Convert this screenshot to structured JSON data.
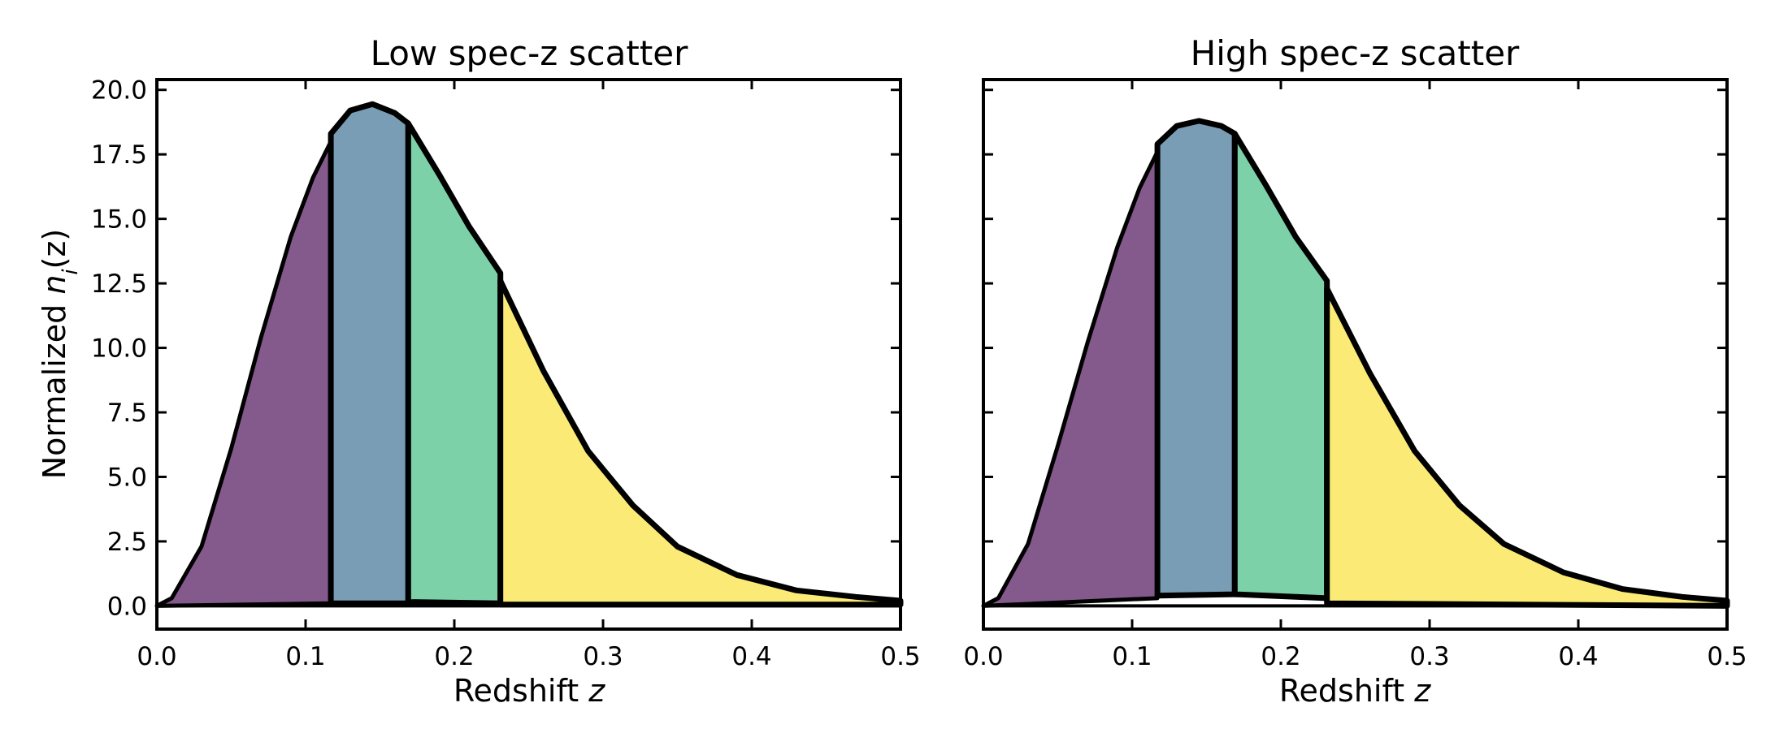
{
  "chart_data": [
    {
      "type": "area",
      "title": "Low spec-z scatter",
      "xlabel": "Redshift",
      "xlabel_var": "z",
      "ylabel": "Normalized",
      "ylabel_var": "n",
      "ylabel_sub": "i",
      "ylabel_arg": "(z)",
      "xlim": [
        0,
        0.5
      ],
      "ylim": [
        -0.9,
        20.4
      ],
      "xticks": [
        "0.0",
        "0.1",
        "0.2",
        "0.3",
        "0.4",
        "0.5"
      ],
      "yticks": [
        "0.0",
        "2.5",
        "5.0",
        "7.5",
        "10.0",
        "12.5",
        "15.0",
        "17.5",
        "20.0"
      ],
      "colors": [
        "#84598c",
        "#789db5",
        "#7dd1a8",
        "#fbeb76"
      ],
      "bin_edges": [
        0,
        0.117,
        0.169,
        0.231,
        0.5
      ],
      "series": [
        {
          "values": [
            [
              0,
              0.0
            ],
            [
              0.01,
              0.3
            ],
            [
              0.03,
              2.3
            ],
            [
              0.05,
              6.1
            ],
            [
              0.07,
              10.4
            ],
            [
              0.09,
              14.3
            ],
            [
              0.105,
              16.6
            ],
            [
              0.117,
              18.0
            ]
          ],
          "baseline_start": 0.0,
          "baseline_end": 0.1
        },
        {
          "values": [
            [
              0.117,
              18.3
            ],
            [
              0.13,
              19.2
            ],
            [
              0.145,
              19.45
            ],
            [
              0.16,
              19.1
            ],
            [
              0.169,
              18.7
            ]
          ],
          "baseline_start": 0.1,
          "baseline_end": 0.1
        },
        {
          "values": [
            [
              0.169,
              18.7
            ],
            [
              0.19,
              16.7
            ],
            [
              0.21,
              14.7
            ],
            [
              0.231,
              12.9
            ]
          ],
          "baseline_start": 0.15,
          "baseline_end": 0.1
        },
        {
          "values": [
            [
              0.231,
              12.6
            ],
            [
              0.26,
              9.1
            ],
            [
              0.29,
              6.0
            ],
            [
              0.32,
              3.9
            ],
            [
              0.35,
              2.3
            ],
            [
              0.39,
              1.2
            ],
            [
              0.43,
              0.6
            ],
            [
              0.47,
              0.35
            ],
            [
              0.5,
              0.2
            ]
          ],
          "baseline_start": 0.05,
          "baseline_end": 0.05
        }
      ]
    },
    {
      "type": "area",
      "title": "High spec-z scatter",
      "xlabel": "Redshift",
      "xlabel_var": "z",
      "xlim": [
        0,
        0.5
      ],
      "ylim": [
        -0.9,
        20.4
      ],
      "xticks": [
        "0.0",
        "0.1",
        "0.2",
        "0.3",
        "0.4",
        "0.5"
      ],
      "yticks": [],
      "colors": [
        "#84598c",
        "#789db5",
        "#7dd1a8",
        "#fbeb76"
      ],
      "bin_edges": [
        0,
        0.117,
        0.169,
        0.231,
        0.5
      ],
      "series": [
        {
          "values": [
            [
              0,
              0.0
            ],
            [
              0.01,
              0.3
            ],
            [
              0.03,
              2.4
            ],
            [
              0.05,
              6.2
            ],
            [
              0.07,
              10.2
            ],
            [
              0.09,
              13.9
            ],
            [
              0.105,
              16.2
            ],
            [
              0.117,
              17.6
            ]
          ],
          "baseline_start": 0.0,
          "baseline_end": 0.3
        },
        {
          "values": [
            [
              0.117,
              17.9
            ],
            [
              0.13,
              18.6
            ],
            [
              0.145,
              18.8
            ],
            [
              0.16,
              18.6
            ],
            [
              0.169,
              18.3
            ]
          ],
          "baseline_start": 0.4,
          "baseline_end": 0.45
        },
        {
          "values": [
            [
              0.169,
              18.3
            ],
            [
              0.19,
              16.3
            ],
            [
              0.21,
              14.3
            ],
            [
              0.231,
              12.6
            ]
          ],
          "baseline_start": 0.45,
          "baseline_end": 0.3
        },
        {
          "values": [
            [
              0.231,
              12.3
            ],
            [
              0.26,
              9.0
            ],
            [
              0.29,
              6.0
            ],
            [
              0.32,
              3.9
            ],
            [
              0.35,
              2.4
            ],
            [
              0.39,
              1.3
            ],
            [
              0.43,
              0.65
            ],
            [
              0.47,
              0.35
            ],
            [
              0.5,
              0.2
            ]
          ],
          "baseline_start": 0.1,
          "baseline_end": 0.0
        }
      ]
    }
  ]
}
